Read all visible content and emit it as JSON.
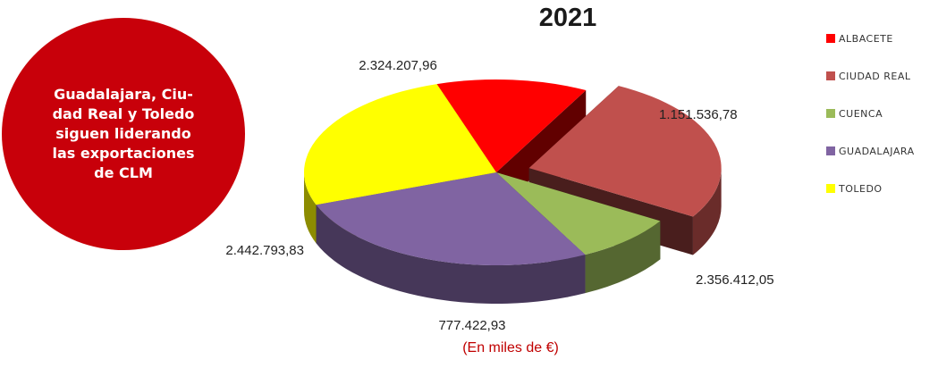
{
  "chart_data": {
    "type": "pie",
    "title_year": "2021",
    "units_note": "(En miles de €)",
    "slices": [
      {
        "name": "ALBACETE",
        "value": 1151536.78,
        "label": "1.151.536,78",
        "color": "#ff0000"
      },
      {
        "name": "CIUDAD REAL",
        "value": 2356412.05,
        "label": "2.356.412,05",
        "color": "#c0504d",
        "exploded": true
      },
      {
        "name": "CUENCA",
        "value": 777422.93,
        "label": "777.422,93",
        "color": "#9bbb59"
      },
      {
        "name": "GUADALAJARA",
        "value": 2442793.83,
        "label": "2.442.793,83",
        "color": "#8064a2"
      },
      {
        "name": "TOLEDO",
        "value": 2324207.96,
        "label": "2.324.207,96",
        "color": "#ffff00"
      }
    ],
    "legend_position": "right"
  },
  "callout": {
    "text": "Guadalajara, Ciudad Real y Toledo siguen liderando las exportaciones de CLM",
    "color": "#c8000a"
  }
}
